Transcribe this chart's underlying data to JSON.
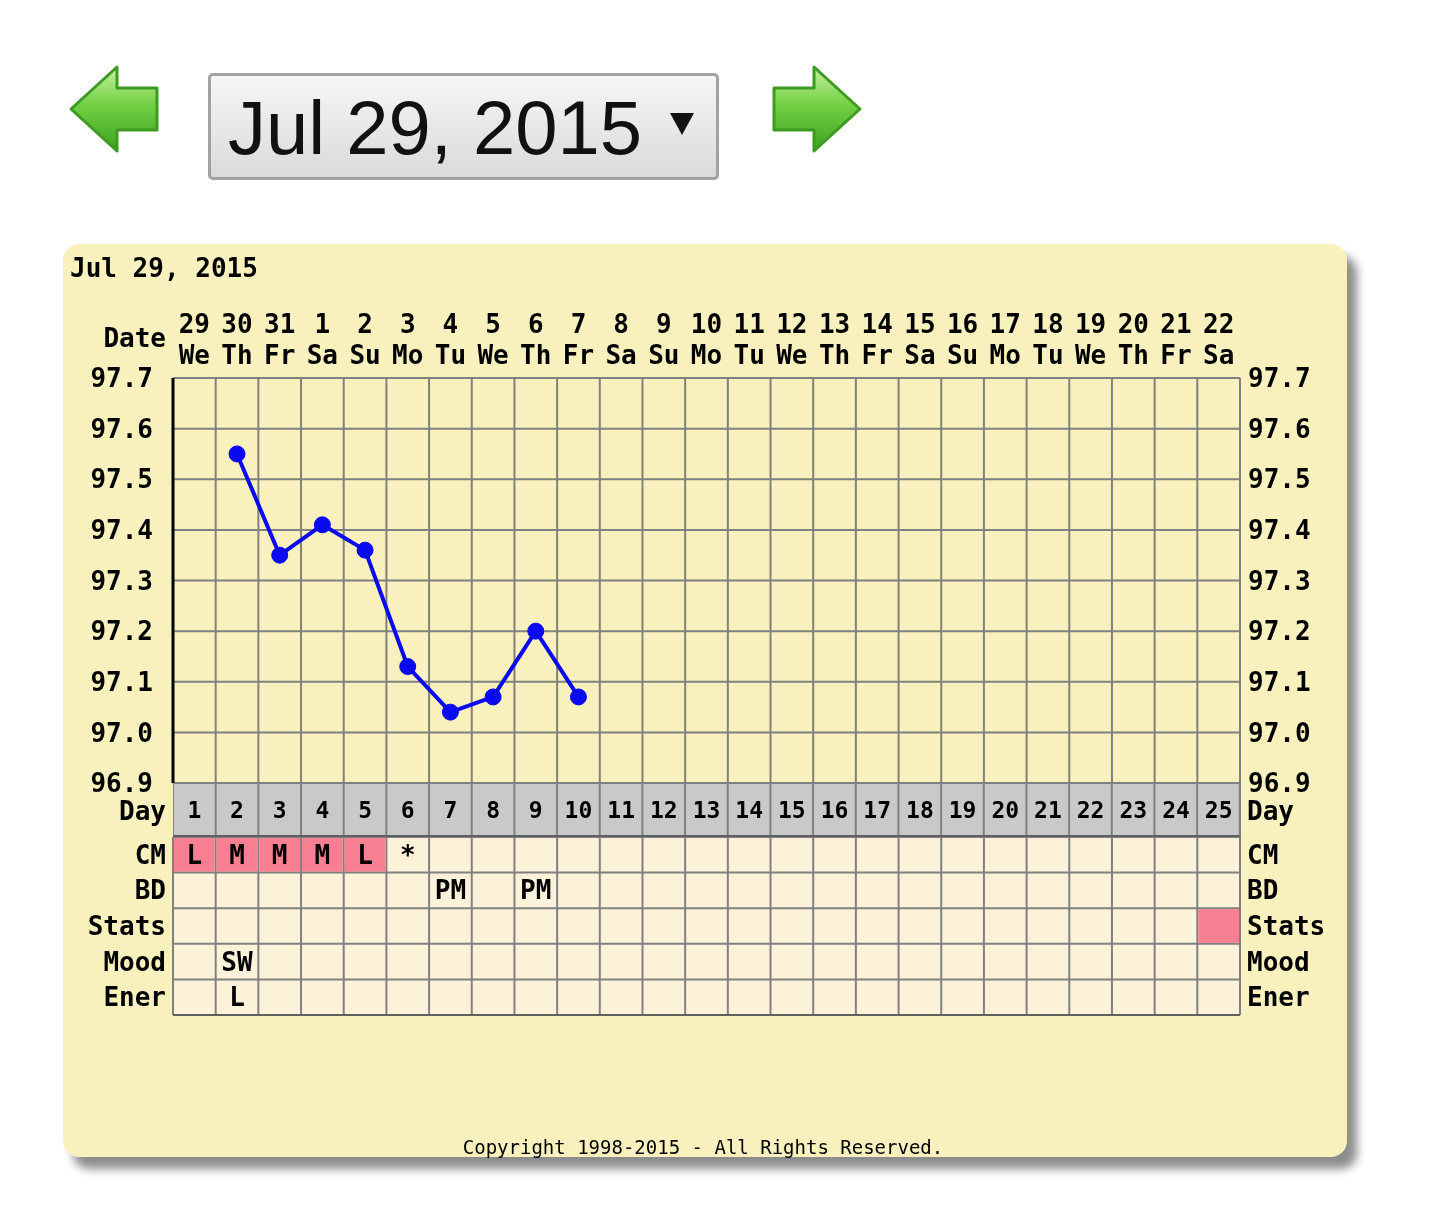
{
  "chart_data": [
    {
      "type": "line",
      "title": "Jul 29, 2015",
      "xlabel": "Date",
      "x2label": "Day",
      "categories": [
        "29\nWe",
        "30\nTh",
        "31\nFr",
        "1\nSa",
        "2\nSu",
        "3\nMo",
        "4\nTu",
        "5\nWe",
        "6\nTh",
        "7\nFr",
        "8\nSa",
        "9\nSu",
        "10\nMo",
        "11\nTu",
        "12\nWe",
        "13\nTh",
        "14\nFr",
        "15\nSa",
        "16\nSu",
        "17\nMo",
        "18\nTu",
        "19\nWe",
        "20\nTh",
        "21\nFr",
        "22\nSa"
      ],
      "values": [
        null,
        97.55,
        97.35,
        97.41,
        97.36,
        97.13,
        97.04,
        97.07,
        97.2,
        97.07,
        null,
        null,
        null,
        null,
        null,
        null,
        null,
        null,
        null,
        null,
        null,
        null,
        null,
        null,
        null
      ],
      "color": "#0a0af0",
      "x2lim": [
        0.5,
        25.5
      ],
      "x2ticks": [
        1,
        2,
        3,
        4,
        5,
        6,
        7,
        8,
        9,
        10,
        11,
        12,
        13,
        14,
        15,
        16,
        17,
        18,
        19,
        20,
        21,
        22,
        23,
        24,
        25
      ],
      "ylim": [
        96.9,
        97.7
      ],
      "yticks": [
        96.9,
        {
          "value": 97,
          "label": "97.0"
        },
        97.1,
        97.2,
        97.3,
        97.4,
        97.5,
        97.6,
        97.7
      ],
      "y2lim": [
        96.9,
        97.7
      ],
      "y2ticks": [
        96.9,
        {
          "value": 97,
          "label": "97.0"
        },
        97.1,
        97.2,
        97.3,
        97.4,
        97.5,
        97.6,
        97.7
      ],
      "grid": true,
      "marker": "circle",
      "annotations": [
        "Jul 29, 2015"
      ]
    },
    {
      "type": "other",
      "y_categories": [
        "CM",
        "BD",
        "Stats",
        "Mood",
        "Ener"
      ],
      "y2_categories": [
        "CM",
        "BD",
        "Stats",
        "Mood",
        "Ener"
      ],
      "cell_labels": [
        [
          "L",
          "M",
          "M",
          "M",
          "L",
          "*",
          null,
          null,
          null,
          null,
          null,
          null,
          null,
          null,
          null,
          null,
          null,
          null,
          null,
          null,
          null,
          null,
          null,
          null,
          null
        ],
        [
          null,
          null,
          null,
          null,
          null,
          null,
          "PM",
          null,
          "PM",
          null,
          null,
          null,
          null,
          null,
          null,
          null,
          null,
          null,
          null,
          null,
          null,
          null,
          null,
          null,
          null
        ],
        [
          null,
          null,
          null,
          null,
          null,
          null,
          null,
          null,
          null,
          null,
          null,
          null,
          null,
          null,
          null,
          null,
          null,
          null,
          null,
          null,
          null,
          null,
          null,
          null,
          null
        ],
        [
          null,
          "SW",
          null,
          null,
          null,
          null,
          null,
          null,
          null,
          null,
          null,
          null,
          null,
          null,
          null,
          null,
          null,
          null,
          null,
          null,
          null,
          null,
          null,
          null,
          null
        ],
        [
          null,
          "L",
          null,
          null,
          null,
          null,
          null,
          null,
          null,
          null,
          null,
          null,
          null,
          null,
          null,
          null,
          null,
          null,
          null,
          null,
          null,
          null,
          null,
          null,
          null
        ]
      ],
      "colors": [
        [
          "#f67f92",
          "#f67f92",
          "#f67f92",
          "#f67f92",
          "#f67f92",
          null,
          null,
          null,
          null,
          null,
          null,
          null,
          null,
          null,
          null,
          null,
          null,
          null,
          null,
          null,
          null,
          null,
          null,
          null,
          null
        ],
        [
          null,
          null,
          null,
          null,
          null,
          null,
          null,
          null,
          null,
          null,
          null,
          null,
          null,
          null,
          null,
          null,
          null,
          null,
          null,
          null,
          null,
          null,
          null,
          null,
          null
        ],
        [
          null,
          null,
          null,
          null,
          null,
          null,
          null,
          null,
          null,
          null,
          null,
          null,
          null,
          null,
          null,
          null,
          null,
          null,
          null,
          null,
          null,
          null,
          null,
          null,
          "#f67f92"
        ],
        [
          null,
          null,
          null,
          null,
          null,
          null,
          null,
          null,
          null,
          null,
          null,
          null,
          null,
          null,
          null,
          null,
          null,
          null,
          null,
          null,
          null,
          null,
          null,
          null,
          null
        ],
        [
          null,
          null,
          null,
          null,
          null,
          null,
          null,
          null,
          null,
          null,
          null,
          null,
          null,
          null,
          null,
          null,
          null,
          null,
          null,
          null,
          null,
          null,
          null,
          null,
          null
        ]
      ],
      "annotations": [
        "Copyright 1998-2015 - All Rights Reserved."
      ]
    }
  ]
}
